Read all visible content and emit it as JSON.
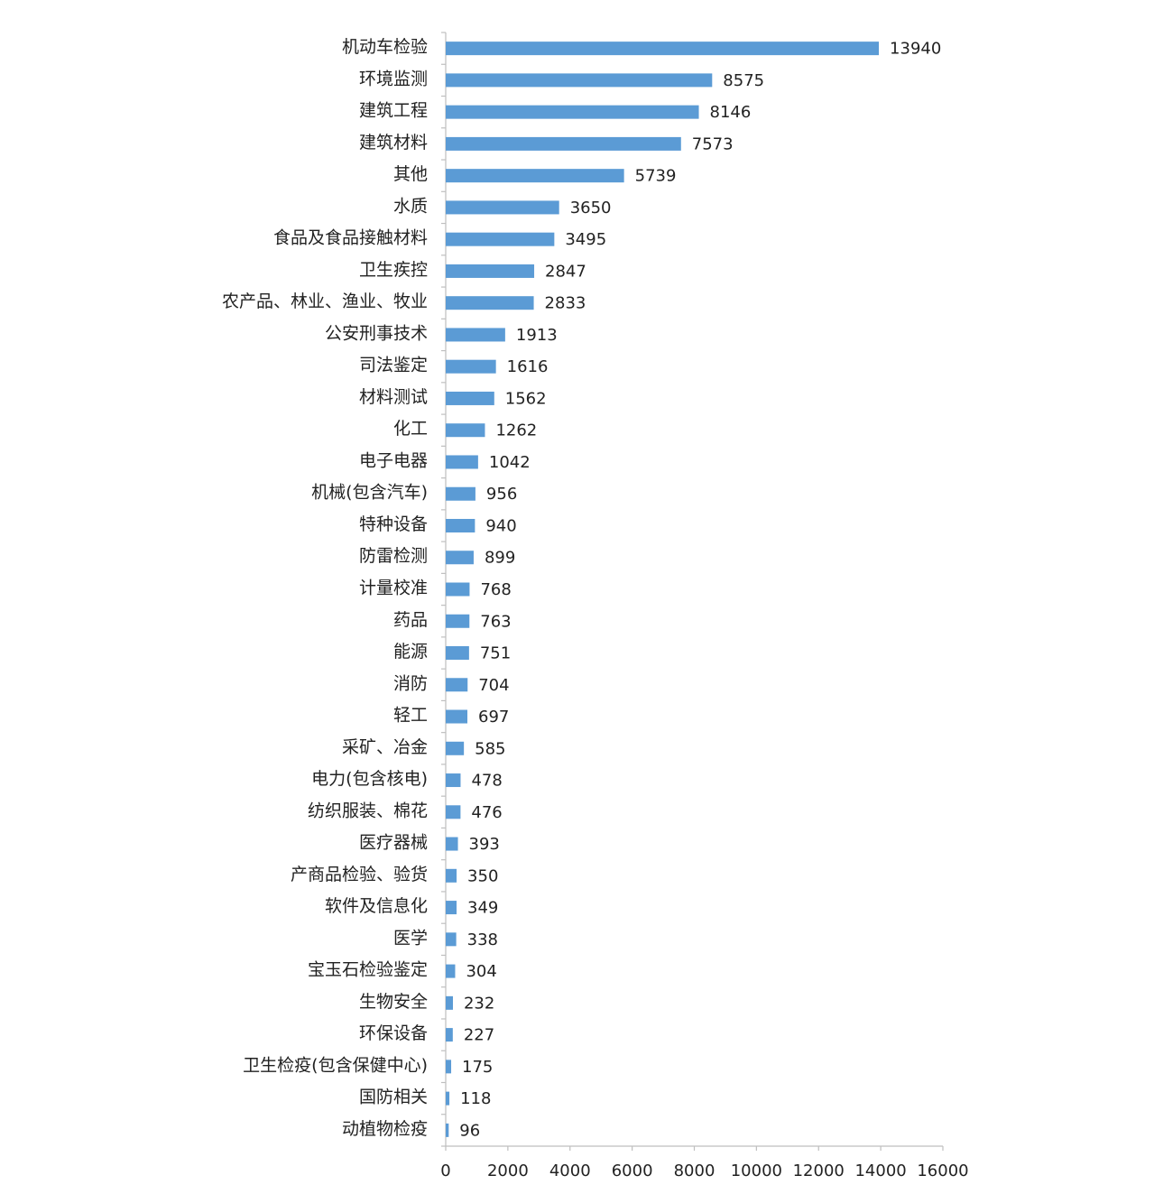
{
  "chart_data": {
    "type": "bar",
    "categories": [
      "机动车检验",
      "环境监测",
      "建筑工程",
      "建筑材料",
      "其他",
      "水质",
      "食品及食品接触材料",
      "卫生疾控",
      "农产品、林业、渔业、牧业",
      "公安刑事技术",
      "司法鉴定",
      "材料测试",
      "化工",
      "电子电器",
      "机械(包含汽车)",
      "特种设备",
      "防雷检测",
      "计量校准",
      "药品",
      "能源",
      "消防",
      "轻工",
      "采矿、冶金",
      "电力(包含核电)",
      "纺织服装、棉花",
      "医疗器械",
      "产商品检验、验货",
      "软件及信息化",
      "医学",
      "宝玉石检验鉴定",
      "生物安全",
      "环保设备",
      "卫生检疫(包含保健中心)",
      "国防相关",
      "动植物检疫"
    ],
    "values": [
      13940,
      8575,
      8146,
      7573,
      5739,
      3650,
      3495,
      2847,
      2833,
      1913,
      1616,
      1562,
      1262,
      1042,
      956,
      940,
      899,
      768,
      763,
      751,
      704,
      697,
      585,
      478,
      476,
      393,
      350,
      349,
      338,
      304,
      232,
      227,
      175,
      118,
      96
    ],
    "color": "#5b9bd5",
    "xlim": [
      0,
      16000
    ],
    "xticks": [
      0,
      2000,
      4000,
      6000,
      8000,
      10000,
      12000,
      14000,
      16000
    ]
  }
}
